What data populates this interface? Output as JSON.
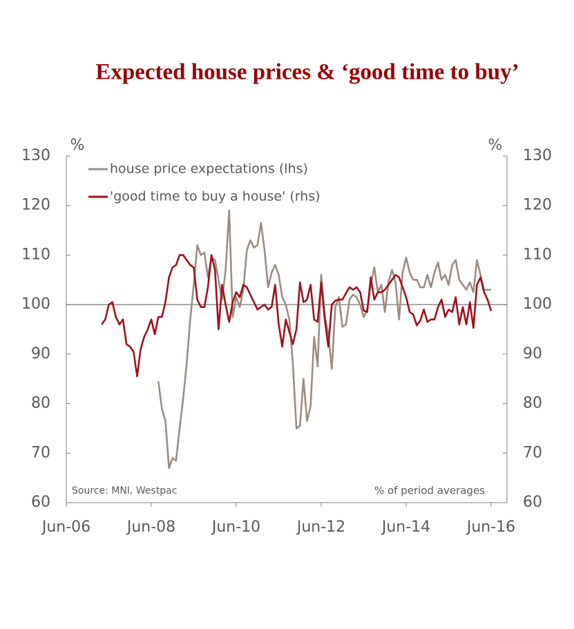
{
  "chart_data": {
    "type": "line",
    "title": "Expected house prices & ‘good time to buy’",
    "ylabel": "%",
    "y2label": "%",
    "source": "Source: MNI, Westpac",
    "note": "% of period averages",
    "categories": [
      "Jun-06",
      null,
      null,
      null,
      null,
      null,
      null,
      null,
      null,
      null,
      null,
      null,
      null,
      null,
      null,
      null,
      null,
      null,
      null,
      null,
      null,
      null,
      null,
      null,
      "Jun-08",
      null,
      null,
      null,
      null,
      null,
      null,
      null,
      null,
      null,
      null,
      null,
      null,
      null,
      null,
      null,
      null,
      null,
      null,
      null,
      null,
      null,
      null,
      null,
      "Jun-10",
      null,
      null,
      null,
      null,
      null,
      null,
      null,
      null,
      null,
      null,
      null,
      null,
      null,
      null,
      null,
      null,
      null,
      null,
      null,
      null,
      null,
      null,
      null,
      "Jun-12",
      null,
      null,
      null,
      null,
      null,
      null,
      null,
      null,
      null,
      null,
      null,
      null,
      null,
      null,
      null,
      null,
      null,
      null,
      null,
      null,
      null,
      null,
      null,
      "Jun-14",
      null,
      null,
      null,
      null,
      null,
      null,
      null,
      null,
      null,
      null,
      null,
      null,
      null,
      null,
      null,
      null,
      null,
      null,
      null,
      null,
      null,
      null,
      null,
      "Jun-16"
    ],
    "series": [
      {
        "name": "house price expectations (lhs)",
        "color": "#9c8c80",
        "axis": "y",
        "values": [
          null,
          null,
          null,
          null,
          null,
          null,
          null,
          null,
          null,
          null,
          null,
          null,
          null,
          null,
          null,
          null,
          null,
          null,
          null,
          null,
          null,
          null,
          null,
          null,
          null,
          null,
          84.5,
          79,
          76.5,
          67,
          69,
          68.5,
          75,
          81,
          88,
          97,
          104,
          112,
          110,
          110.5,
          105.5,
          109.5,
          109,
          105,
          101,
          107,
          119,
          97.5,
          101.5,
          99.5,
          103,
          111,
          113,
          111.5,
          112,
          116.5,
          111,
          103.5,
          106.5,
          108,
          106,
          101.5,
          100,
          97,
          88,
          75,
          75.5,
          85,
          76.5,
          79.5,
          93.5,
          87.5,
          106,
          98,
          94,
          87,
          99.5,
          101.5,
          95.5,
          96,
          101,
          102,
          101.5,
          100,
          97.5,
          99,
          104,
          107.5,
          102.5,
          104,
          98.5,
          104.5,
          107,
          104.5,
          97,
          106.5,
          109.5,
          106.5,
          105,
          105,
          103.5,
          103.5,
          106,
          103.5,
          106.5,
          108.5,
          105,
          106,
          104,
          108,
          109,
          105,
          104,
          103,
          104.5,
          102.5,
          109,
          106,
          103,
          103,
          103
        ]
      },
      {
        "name": "'good time to buy a house' (rhs)",
        "color": "#a0101a",
        "axis": "y2",
        "values": [
          null,
          null,
          null,
          null,
          null,
          null,
          null,
          null,
          null,
          null,
          96,
          97,
          100,
          100.5,
          97.5,
          96,
          97,
          92,
          91.5,
          90.5,
          85.5,
          91,
          93.5,
          95,
          97,
          94,
          97.5,
          97.5,
          100.5,
          105.5,
          107.5,
          108,
          110,
          110,
          109,
          108,
          107.5,
          101,
          99.5,
          99.5,
          103.5,
          110,
          107,
          95,
          104,
          100,
          96.5,
          100.5,
          102.5,
          101.5,
          104,
          103.5,
          102,
          100.5,
          99,
          99.5,
          100,
          99,
          99.5,
          104,
          96,
          91.5,
          97,
          94.5,
          92,
          95,
          104.5,
          100.5,
          101,
          104,
          97,
          96.5,
          104.5,
          97,
          91.5,
          100,
          100.8,
          101,
          101,
          102.3,
          103.5,
          103,
          103.5,
          102.5,
          98.8,
          98.5,
          105.5,
          101,
          102.5,
          102.5,
          103,
          104,
          105,
          106,
          105.5,
          103.5,
          101.5,
          98.5,
          98,
          95.8,
          96.8,
          99,
          96.5,
          97,
          97,
          99.5,
          101,
          97.5,
          99,
          98.5,
          101.5,
          96,
          99.5,
          96,
          100.5,
          95.3,
          104,
          105.5,
          102.5,
          101,
          98.7
        ]
      }
    ],
    "ylim": [
      60,
      130
    ],
    "yticks": [
      60,
      70,
      80,
      90,
      100,
      110,
      120,
      130
    ],
    "y2lim": [
      60,
      130
    ],
    "y2ticks": [
      60,
      70,
      80,
      90,
      100,
      110,
      120,
      130
    ],
    "reference_line": 100,
    "legend": "upper left",
    "grid": false
  }
}
